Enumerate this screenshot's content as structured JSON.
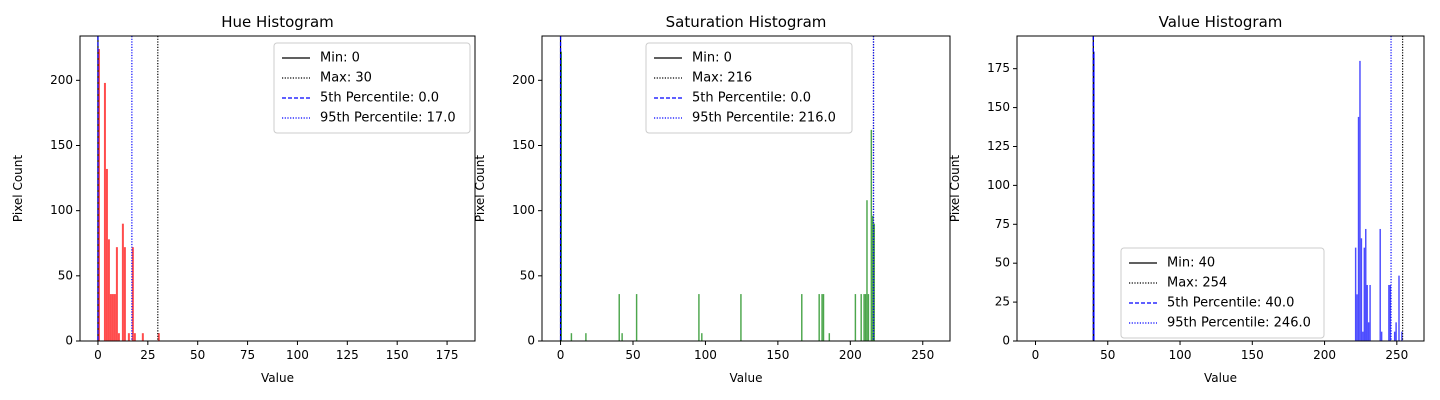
{
  "chart_data": [
    {
      "type": "bar",
      "title": "Hue Histogram",
      "xlabel": "Value",
      "ylabel": "Pixel Count",
      "xlim": [
        -9,
        189
      ],
      "ylim": [
        0,
        234
      ],
      "xticks": [
        0,
        25,
        50,
        75,
        100,
        125,
        150,
        175
      ],
      "yticks": [
        0,
        50,
        100,
        150,
        200
      ],
      "bar_color": "#ff0000",
      "bar_opacity": 0.7,
      "bars": [
        {
          "x": 0,
          "y": 224
        },
        {
          "x": 1,
          "y": 0
        },
        {
          "x": 2,
          "y": 0
        },
        {
          "x": 3,
          "y": 198
        },
        {
          "x": 4,
          "y": 132
        },
        {
          "x": 5,
          "y": 78
        },
        {
          "x": 6,
          "y": 36
        },
        {
          "x": 7,
          "y": 36
        },
        {
          "x": 8,
          "y": 36
        },
        {
          "x": 9,
          "y": 72
        },
        {
          "x": 10,
          "y": 6
        },
        {
          "x": 11,
          "y": 0
        },
        {
          "x": 12,
          "y": 90
        },
        {
          "x": 13,
          "y": 72
        },
        {
          "x": 15,
          "y": 6
        },
        {
          "x": 17,
          "y": 72
        },
        {
          "x": 18,
          "y": 6
        },
        {
          "x": 22,
          "y": 6
        },
        {
          "x": 30,
          "y": 6
        }
      ],
      "lines": [
        {
          "label": "Min: 0",
          "value": 0,
          "color": "#000000",
          "style": "solid"
        },
        {
          "label": "Max: 30",
          "value": 30,
          "color": "#000000",
          "style": "dotted"
        },
        {
          "label": "5th Percentile: 0.0",
          "value": 0.0,
          "color": "#0000ff",
          "style": "dashed"
        },
        {
          "label": "95th Percentile: 17.0",
          "value": 17.0,
          "color": "#0000ff",
          "style": "dotted"
        }
      ],
      "legend_position": "top-right"
    },
    {
      "type": "bar",
      "title": "Saturation Histogram",
      "xlabel": "Value",
      "ylabel": "Pixel Count",
      "xlim": [
        -12.8,
        268.8
      ],
      "ylim": [
        0,
        234
      ],
      "xticks": [
        0,
        50,
        100,
        150,
        200,
        250
      ],
      "yticks": [
        0,
        50,
        100,
        150,
        200
      ],
      "bar_color": "#008000",
      "bar_opacity": 0.7,
      "bars": [
        {
          "x": 0,
          "y": 222
        },
        {
          "x": 7,
          "y": 6
        },
        {
          "x": 17,
          "y": 6
        },
        {
          "x": 40,
          "y": 36
        },
        {
          "x": 42,
          "y": 6
        },
        {
          "x": 52,
          "y": 36
        },
        {
          "x": 95,
          "y": 36
        },
        {
          "x": 97,
          "y": 6
        },
        {
          "x": 124,
          "y": 36
        },
        {
          "x": 166,
          "y": 36
        },
        {
          "x": 178,
          "y": 36
        },
        {
          "x": 180,
          "y": 36
        },
        {
          "x": 181,
          "y": 36
        },
        {
          "x": 185,
          "y": 6
        },
        {
          "x": 203,
          "y": 36
        },
        {
          "x": 207,
          "y": 36
        },
        {
          "x": 209,
          "y": 36
        },
        {
          "x": 210,
          "y": 36
        },
        {
          "x": 211,
          "y": 108
        },
        {
          "x": 212,
          "y": 36
        },
        {
          "x": 214,
          "y": 162
        },
        {
          "x": 215,
          "y": 96
        },
        {
          "x": 216,
          "y": 90
        }
      ],
      "lines": [
        {
          "label": "Min: 0",
          "value": 0,
          "color": "#000000",
          "style": "solid"
        },
        {
          "label": "Max: 216",
          "value": 216,
          "color": "#000000",
          "style": "dotted"
        },
        {
          "label": "5th Percentile: 0.0",
          "value": 0.0,
          "color": "#0000ff",
          "style": "dashed"
        },
        {
          "label": "95th Percentile: 216.0",
          "value": 216.0,
          "color": "#0000ff",
          "style": "dotted"
        }
      ],
      "legend_position": "top-center"
    },
    {
      "type": "bar",
      "title": "Value Histogram",
      "xlabel": "Value",
      "ylabel": "Pixel Count",
      "xlim": [
        -12.8,
        268.8
      ],
      "ylim": [
        0,
        196
      ],
      "xticks": [
        0,
        50,
        100,
        150,
        200,
        250
      ],
      "yticks": [
        0,
        25,
        50,
        75,
        100,
        125,
        150,
        175
      ],
      "bar_color": "#0000ff",
      "bar_opacity": 0.7,
      "bars": [
        {
          "x": 40,
          "y": 186
        },
        {
          "x": 221,
          "y": 60
        },
        {
          "x": 222,
          "y": 30
        },
        {
          "x": 223,
          "y": 144
        },
        {
          "x": 224,
          "y": 180
        },
        {
          "x": 225,
          "y": 66
        },
        {
          "x": 226,
          "y": 6
        },
        {
          "x": 227,
          "y": 60
        },
        {
          "x": 228,
          "y": 72
        },
        {
          "x": 229,
          "y": 36
        },
        {
          "x": 230,
          "y": 12
        },
        {
          "x": 231,
          "y": 36
        },
        {
          "x": 238,
          "y": 72
        },
        {
          "x": 239,
          "y": 6
        },
        {
          "x": 244,
          "y": 36
        },
        {
          "x": 245,
          "y": 36
        },
        {
          "x": 248,
          "y": 6
        },
        {
          "x": 249,
          "y": 12
        },
        {
          "x": 251,
          "y": 42
        },
        {
          "x": 253,
          "y": 6
        }
      ],
      "lines": [
        {
          "label": "Min: 40",
          "value": 40,
          "color": "#000000",
          "style": "solid"
        },
        {
          "label": "Max: 254",
          "value": 254,
          "color": "#000000",
          "style": "dotted"
        },
        {
          "label": "5th Percentile: 40.0",
          "value": 40.0,
          "color": "#0000ff",
          "style": "dashed"
        },
        {
          "label": "95th Percentile: 246.0",
          "value": 246.0,
          "color": "#0000ff",
          "style": "dotted"
        }
      ],
      "legend_position": "bottom-center"
    }
  ]
}
